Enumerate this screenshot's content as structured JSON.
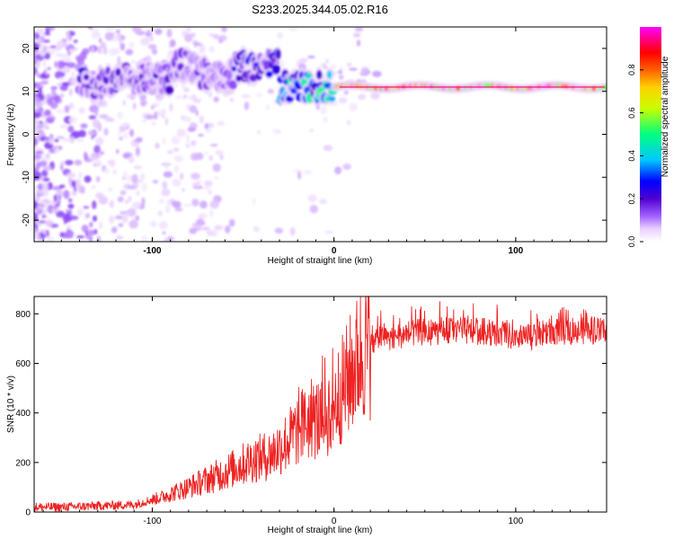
{
  "title": "S233.2025.344.05.02.R16",
  "chart_data": [
    {
      "type": "heatmap",
      "title": "S233.2025.344.05.02.R16",
      "xlabel": "Height of straight line (km)",
      "ylabel": "Frequency (Hz)",
      "xlim": [
        -165,
        150
      ],
      "ylim": [
        -25,
        25
      ],
      "xticks": [
        -100,
        0,
        100
      ],
      "yticks": [
        -20,
        -10,
        0,
        10,
        20
      ],
      "colorbar": {
        "label": "Normalized spectral amplitude",
        "range": [
          0,
          1
        ],
        "ticks": [
          0.0,
          0.2,
          0.4,
          0.6,
          0.8
        ],
        "colors": [
          "#ffffff",
          "#e8d0ff",
          "#a060ff",
          "#5000d0",
          "#0000ff",
          "#00c8ff",
          "#00ff80",
          "#c8ff00",
          "#ffd000",
          "#ff6000",
          "#ff0000",
          "#ff00ff"
        ]
      },
      "ridge_segments": [
        {
          "x_start": -140,
          "x_end": -120,
          "freq": 12,
          "amplitude": 0.25
        },
        {
          "x_start": -120,
          "x_end": -90,
          "freq": 13,
          "amplitude": 0.25
        },
        {
          "x_start": -90,
          "x_end": -75,
          "freq": 16,
          "amplitude": 0.2
        },
        {
          "x_start": -75,
          "x_end": -55,
          "freq": 14,
          "amplitude": 0.2
        },
        {
          "x_start": -55,
          "x_end": -30,
          "freq": 16,
          "amplitude": 0.3
        },
        {
          "x_start": -30,
          "x_end": 0,
          "freq": 11,
          "amplitude": 0.45
        },
        {
          "x_start": 0,
          "x_end": 150,
          "freq": 11,
          "amplitude": 0.85
        }
      ]
    },
    {
      "type": "line",
      "xlabel": "Height of straight line (km)",
      "ylabel": "SNR (10 * v/v)",
      "xlim": [
        -165,
        150
      ],
      "ylim": [
        0,
        870
      ],
      "xticks": [
        -100,
        0,
        100
      ],
      "yticks": [
        0,
        200,
        400,
        600,
        800
      ],
      "color": "#ee2222",
      "series": [
        {
          "name": "SNR",
          "x": [
            -165,
            -150,
            -130,
            -110,
            -95,
            -80,
            -60,
            -45,
            -35,
            -25,
            -15,
            -5,
            5,
            15,
            25,
            40,
            60,
            80,
            95,
            100,
            105,
            120,
            150
          ],
          "y": [
            20,
            20,
            25,
            30,
            60,
            100,
            160,
            210,
            230,
            290,
            370,
            380,
            500,
            640,
            700,
            720,
            730,
            730,
            720,
            680,
            700,
            730,
            730
          ]
        }
      ]
    }
  ]
}
